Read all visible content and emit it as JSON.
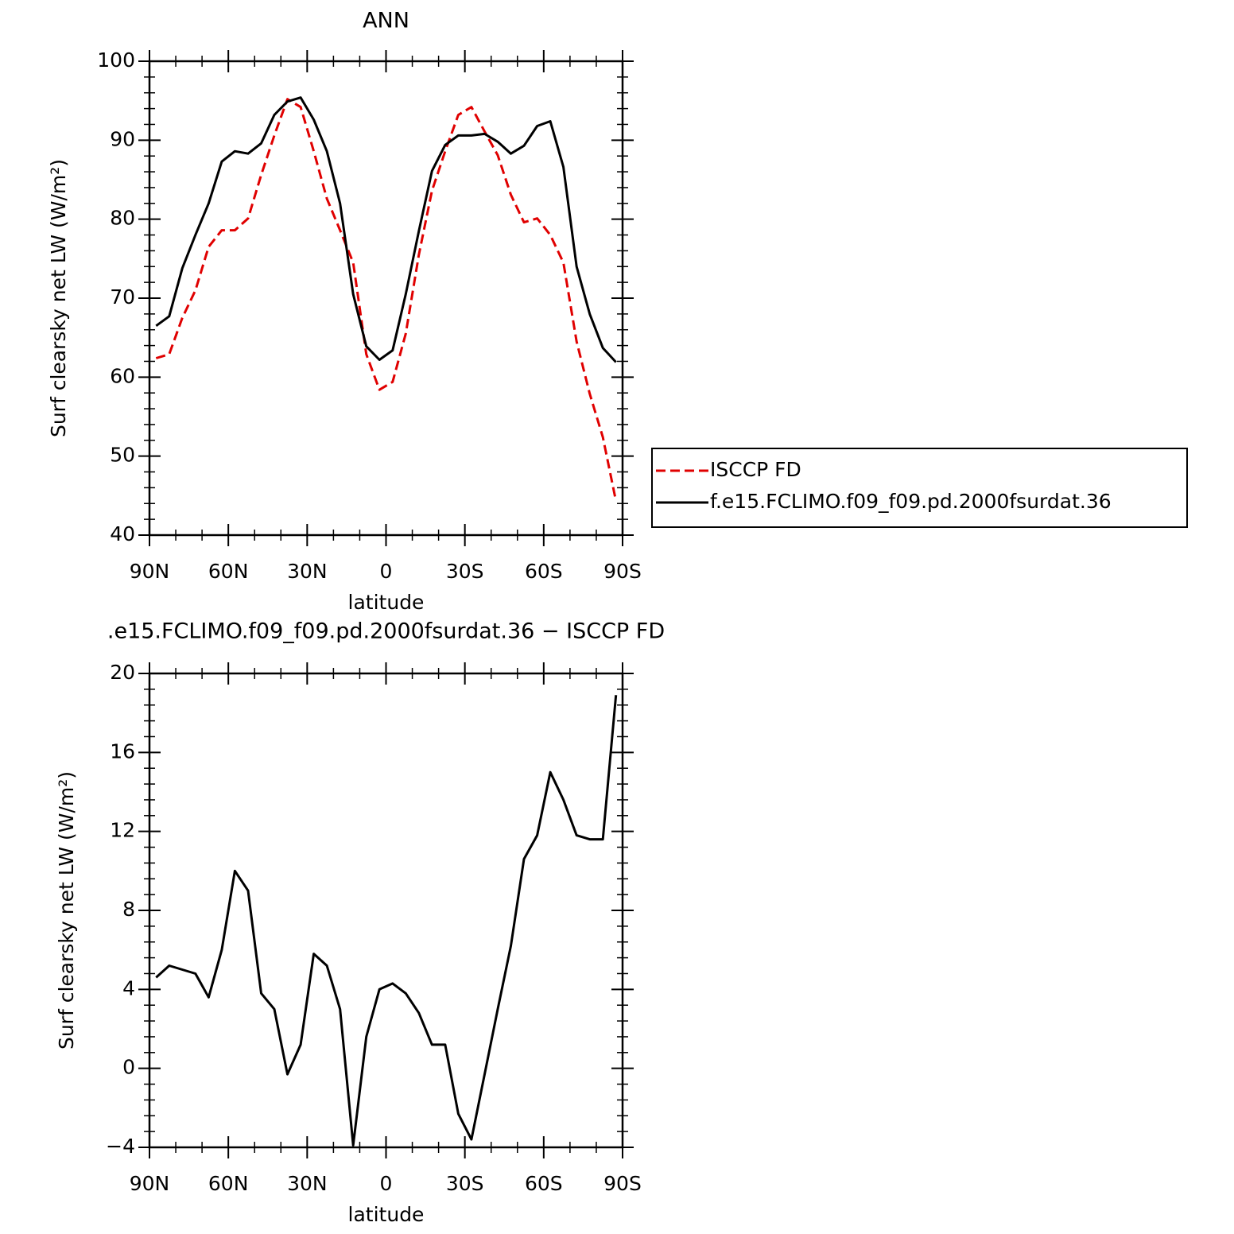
{
  "chart_data": [
    {
      "type": "line",
      "title": "ANN",
      "xlabel": "latitude",
      "ylabel": "Surf clearsky net LW (W/m²)",
      "x": [
        87.5,
        82.5,
        77.5,
        72.5,
        67.5,
        62.5,
        57.5,
        52.5,
        47.5,
        42.5,
        37.5,
        32.5,
        27.5,
        22.5,
        17.5,
        12.5,
        7.5,
        2.5,
        -2.5,
        -7.5,
        -12.5,
        -17.5,
        -22.5,
        -27.5,
        -32.5,
        -37.5,
        -42.5,
        -47.5,
        -52.5,
        -57.5,
        -62.5,
        -67.5,
        -72.5,
        -77.5,
        -82.5,
        -87.5
      ],
      "xlim": [
        90,
        -90
      ],
      "xticks": [
        {
          "value": 90,
          "label": "90N"
        },
        {
          "value": 60,
          "label": "60N"
        },
        {
          "value": 30,
          "label": "30N"
        },
        0,
        {
          "value": -30,
          "label": "30S"
        },
        {
          "value": -60,
          "label": "60S"
        },
        {
          "value": -90,
          "label": "90S"
        }
      ],
      "ylim": [
        40,
        100
      ],
      "yticks": [
        40,
        50,
        60,
        70,
        80,
        90,
        100
      ],
      "series": [
        {
          "name": "ISCCP FD",
          "color": "#e00000",
          "dash": true,
          "values": [
            62.4,
            62.9,
            67.5,
            71,
            76.5,
            78.6,
            78.6,
            80.1,
            85.6,
            90.6,
            95.2,
            94.2,
            88.6,
            82.6,
            78.6,
            74.5,
            62.9,
            58.4,
            59.4,
            65.5,
            75.5,
            83.6,
            88.6,
            93.2,
            94.2,
            91.1,
            88.1,
            83.1,
            79.6,
            80.1,
            78,
            74.5,
            64.5,
            57.9,
            52.4,
            44.3
          ]
        },
        {
          "name": "f.e15.FCLIMO.f09_f09.pd.2000fsurdat.36",
          "color": "#000000",
          "dash": false,
          "values": [
            66.5,
            67.7,
            73.8,
            78,
            82,
            87.3,
            88.6,
            88.3,
            89.6,
            93.2,
            94.9,
            95.4,
            92.6,
            88.6,
            82,
            70.5,
            63.9,
            62.2,
            63.4,
            70.5,
            78.5,
            86.1,
            89.4,
            90.6,
            90.6,
            90.8,
            89.8,
            88.3,
            89.3,
            91.8,
            92.4,
            86.6,
            74,
            68,
            63.7,
            61.9
          ]
        }
      ]
    },
    {
      "type": "line",
      "title": ".e15.FCLIMO.f09_f09.pd.2000fsurdat.36 − ISCCP FD",
      "xlabel": "latitude",
      "ylabel": "Surf clearsky net LW (W/m²)",
      "x": [
        87.5,
        82.5,
        77.5,
        72.5,
        67.5,
        62.5,
        57.5,
        52.5,
        47.5,
        42.5,
        37.5,
        32.5,
        27.5,
        22.5,
        17.5,
        12.5,
        7.5,
        2.5,
        -2.5,
        -7.5,
        -12.5,
        -17.5,
        -22.5,
        -27.5,
        -32.5,
        -37.5,
        -42.5,
        -47.5,
        -52.5,
        -57.5,
        -62.5,
        -67.5,
        -72.5,
        -77.5,
        -82.5,
        -87.5
      ],
      "xlim": [
        90,
        -90
      ],
      "xticks": [
        {
          "value": 90,
          "label": "90N"
        },
        {
          "value": 60,
          "label": "60N"
        },
        {
          "value": 30,
          "label": "30N"
        },
        0,
        {
          "value": -30,
          "label": "30S"
        },
        {
          "value": -60,
          "label": "60S"
        },
        {
          "value": -90,
          "label": "90S"
        }
      ],
      "ylim": [
        -4,
        20
      ],
      "yticks": [
        {
          "value": -4,
          "label": "−4"
        },
        0,
        4,
        8,
        12,
        16,
        20
      ],
      "series": [
        {
          "color": "#000000",
          "dash": false,
          "values": [
            4.6,
            5.2,
            5.0,
            4.8,
            3.6,
            6,
            10,
            9,
            3.8,
            3.0,
            -0.3,
            1.2,
            5.8,
            5.2,
            3,
            -3.9,
            1.6,
            4,
            4.3,
            3.8,
            2.8,
            1.2,
            1.2,
            -2.3,
            -3.6,
            -0.3,
            3,
            6.2,
            10.6,
            11.8,
            15,
            13.6,
            11.8,
            11.6,
            11.6,
            18.9
          ]
        }
      ]
    }
  ]
}
